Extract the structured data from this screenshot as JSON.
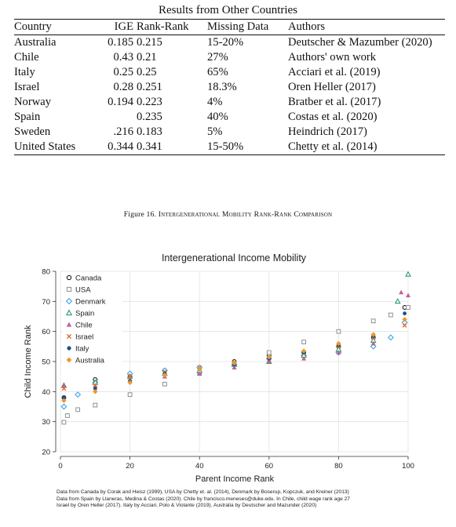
{
  "table": {
    "caption": "Results from Other Countries",
    "headers": [
      "Country",
      "IGE",
      "Rank-Rank",
      "Missing Data",
      "Authors"
    ],
    "rows": [
      [
        "Australia",
        "0.185",
        "0.215",
        "15-20%",
        "Deutscher & Mazumber (2020)"
      ],
      [
        "Chile",
        "0.43",
        "0.21",
        "27%",
        "Authors' own work"
      ],
      [
        "Italy",
        "0.25",
        "0.25",
        "65%",
        "Acciari et al. (2019)"
      ],
      [
        "Israel",
        "0.28",
        "0.251",
        "18.3%",
        "Oren Heller (2017)"
      ],
      [
        "Norway",
        "0.194",
        "0.223",
        "4%",
        "Bratber et al. (2017)"
      ],
      [
        "Spain",
        "",
        "0.235",
        "40%",
        "Costas et al. (2020)"
      ],
      [
        "Sweden",
        ".216",
        "0.183",
        "5%",
        "Heindrich (2017)"
      ],
      [
        "United States",
        "0.344",
        "0.341",
        "15-50%",
        "Chetty et al. (2014)"
      ]
    ]
  },
  "figure": {
    "number": "Figure 16.",
    "title": "Intergenerational Mobility Rank-Rank Comparison",
    "notes": [
      "Data from Canada by Corak and Heisz (1999), USA by Chetty et. al. (2014), Denmark by Boserup, Kopczuk, and Kreiner (2013)",
      "Data from Spain by Llaneras, Medina & Costas (2020). Chile by francisco.meneses@duke.edu. In Chile, child wage rank age 27",
      "Israel by Oren Heller (2017). Italy by Acciari, Polo & Violante (2019). Australia by Deutscher and Mazunder (2020)"
    ]
  },
  "chart_data": {
    "type": "scatter",
    "title": "Intergenerational Income Mobility",
    "xlabel": "Parent Income Rank",
    "ylabel": "Child Income Rank",
    "xlim": [
      0,
      100
    ],
    "ylim": [
      20,
      80
    ],
    "xticks": [
      0,
      20,
      40,
      60,
      80,
      100
    ],
    "yticks": [
      20,
      30,
      40,
      50,
      60,
      70,
      80
    ],
    "grid": true,
    "legend_position": "top-left",
    "series": [
      {
        "name": "Canada",
        "marker": "circle-open",
        "color": "#1a1a1a",
        "x": [
          1,
          10,
          20,
          30,
          40,
          50,
          60,
          70,
          80,
          90,
          99
        ],
        "y": [
          38,
          44,
          45,
          47,
          48,
          50,
          52,
          53,
          55,
          58,
          68
        ]
      },
      {
        "name": "USA",
        "marker": "square-open",
        "color": "#909090",
        "x": [
          1,
          2,
          5,
          10,
          20,
          30,
          40,
          50,
          60,
          70,
          80,
          90,
          95,
          100
        ],
        "y": [
          29.8,
          32,
          34,
          35.5,
          39,
          42.5,
          46,
          49.5,
          53,
          56.5,
          60,
          63.5,
          65.5,
          68
        ]
      },
      {
        "name": "Denmark",
        "marker": "diamond-open",
        "color": "#3aa3e3",
        "x": [
          1,
          5,
          10,
          20,
          30,
          40,
          50,
          60,
          70,
          80,
          90,
          95,
          99
        ],
        "y": [
          35,
          39,
          43,
          46,
          47,
          48,
          49,
          51,
          52,
          53,
          55,
          58,
          63
        ]
      },
      {
        "name": "Spain",
        "marker": "triangle-open",
        "color": "#2e9e6b",
        "x": [
          1,
          10,
          20,
          30,
          40,
          50,
          60,
          70,
          80,
          90,
          97,
          100
        ],
        "y": [
          42,
          43,
          45,
          46,
          47,
          49,
          50,
          52,
          54,
          57,
          70,
          79
        ]
      },
      {
        "name": "Chile",
        "marker": "triangle",
        "color": "#c0609a",
        "x": [
          1,
          10,
          20,
          30,
          40,
          50,
          60,
          70,
          80,
          90,
          98,
          100
        ],
        "y": [
          42,
          42,
          44,
          45,
          46,
          48,
          50,
          51,
          53,
          56,
          73,
          72
        ]
      },
      {
        "name": "Israel",
        "marker": "cross",
        "color": "#e96a2f",
        "x": [
          1,
          10,
          20,
          30,
          40,
          50,
          60,
          70,
          80,
          90,
          99
        ],
        "y": [
          41,
          42,
          45,
          46.5,
          48,
          49.5,
          51,
          53,
          55,
          58,
          62
        ]
      },
      {
        "name": "Italy",
        "marker": "circle",
        "color": "#1e4e8c",
        "x": [
          1,
          10,
          20,
          30,
          40,
          50,
          60,
          70,
          80,
          90,
          99
        ],
        "y": [
          38,
          41,
          43.5,
          46,
          47.5,
          49,
          51,
          53,
          55.5,
          58.5,
          66
        ]
      },
      {
        "name": "Australia",
        "marker": "diamond",
        "color": "#f0982a",
        "x": [
          1,
          10,
          20,
          30,
          40,
          50,
          60,
          70,
          80,
          90,
          99
        ],
        "y": [
          37,
          40,
          43,
          45.5,
          47.5,
          49.5,
          51.5,
          53.5,
          56,
          59,
          64
        ]
      }
    ]
  }
}
